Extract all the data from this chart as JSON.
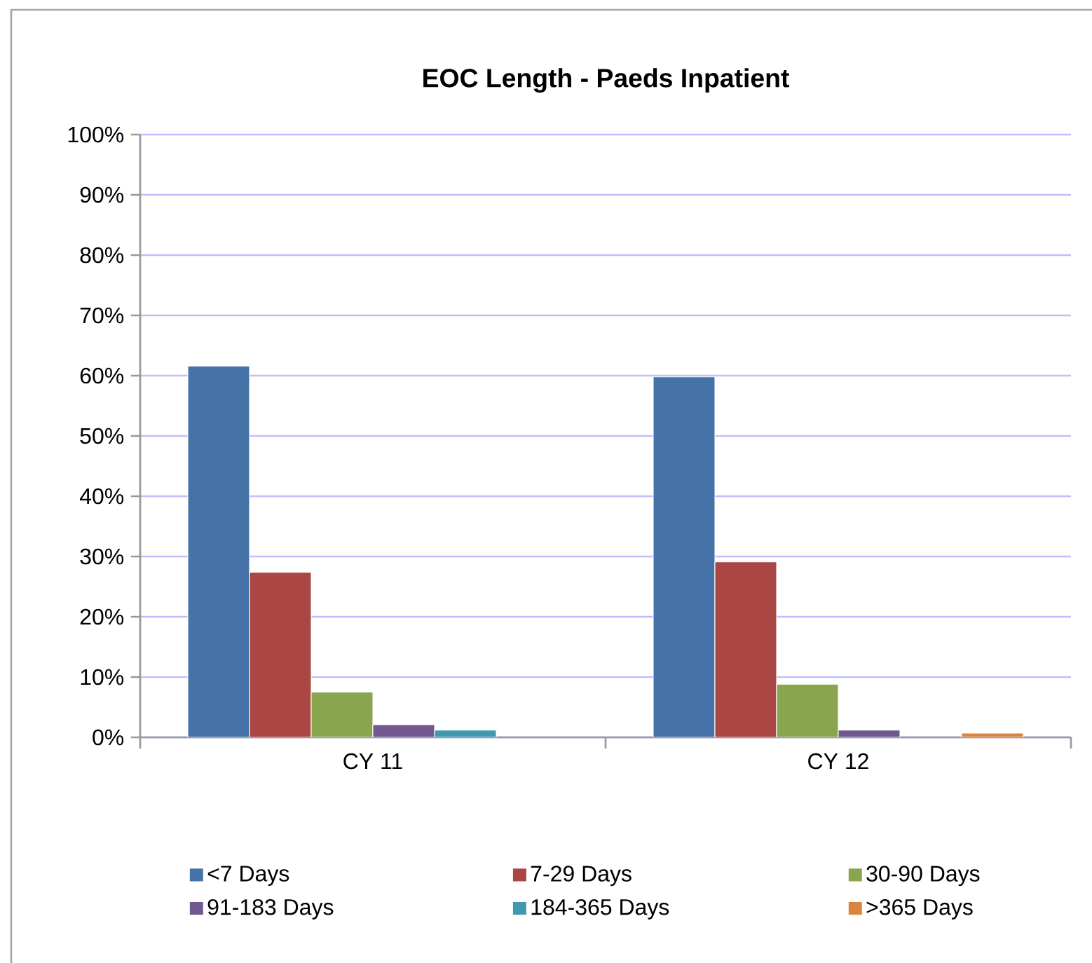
{
  "chart_data": {
    "type": "bar",
    "title": "EOC Length - Paeds Inpatient",
    "categories": [
      "CY 11",
      "CY 12"
    ],
    "series": [
      {
        "name": "<7 Days",
        "color": "#4572a7",
        "values": [
          61.6,
          59.8
        ]
      },
      {
        "name": "7-29 Days",
        "color": "#aa4643",
        "values": [
          27.4,
          29.1
        ]
      },
      {
        "name": "30-90 Days",
        "color": "#89a54e",
        "values": [
          7.5,
          8.8
        ]
      },
      {
        "name": "91-183 Days",
        "color": "#71588f",
        "values": [
          2.1,
          1.2
        ]
      },
      {
        "name": "184-365 Days",
        "color": "#4198af",
        "values": [
          1.2,
          null
        ]
      },
      {
        "name": ">365 Days",
        "color": "#db843d",
        "values": [
          null,
          0.7
        ]
      }
    ],
    "ylim": [
      0,
      100
    ],
    "yticks": [
      {
        "value": 0,
        "label": "0%"
      },
      {
        "value": 10,
        "label": "10%"
      },
      {
        "value": 20,
        "label": "20%"
      },
      {
        "value": 30,
        "label": "30%"
      },
      {
        "value": 40,
        "label": "40%"
      },
      {
        "value": 50,
        "label": "50%"
      },
      {
        "value": 60,
        "label": "60%"
      },
      {
        "value": 70,
        "label": "70%"
      },
      {
        "value": 80,
        "label": "80%"
      },
      {
        "value": 90,
        "label": "90%"
      },
      {
        "value": 100,
        "label": "100%"
      }
    ],
    "grid": "y",
    "legend": "bottom"
  }
}
